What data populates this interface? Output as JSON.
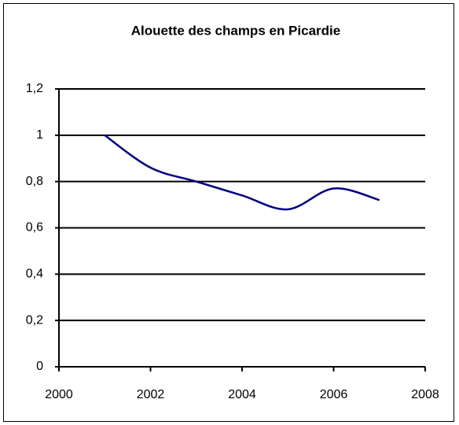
{
  "chart_data": {
    "type": "line",
    "title": "Alouette des champs en Picardie",
    "x": [
      2001,
      2002,
      2003,
      2004,
      2005,
      2006,
      2007
    ],
    "series": [
      {
        "name": "Alouette des champs",
        "color": "#000080",
        "values": [
          1.0,
          0.86,
          0.8,
          0.74,
          0.68,
          0.77,
          0.72
        ]
      }
    ],
    "xlim": [
      2000,
      2008
    ],
    "xticks": [
      2000,
      2002,
      2004,
      2006,
      2008
    ],
    "ylim": [
      0,
      1.2
    ],
    "yticks": [
      0,
      {
        "value": 0.2,
        "label": "0,2"
      },
      {
        "value": 0.4,
        "label": "0,4"
      },
      {
        "value": 0.6,
        "label": "0,6"
      },
      {
        "value": 0.8,
        "label": "0,8"
      },
      1,
      {
        "value": 1.2,
        "label": "1,2"
      }
    ],
    "grid": true,
    "smooth": true
  }
}
